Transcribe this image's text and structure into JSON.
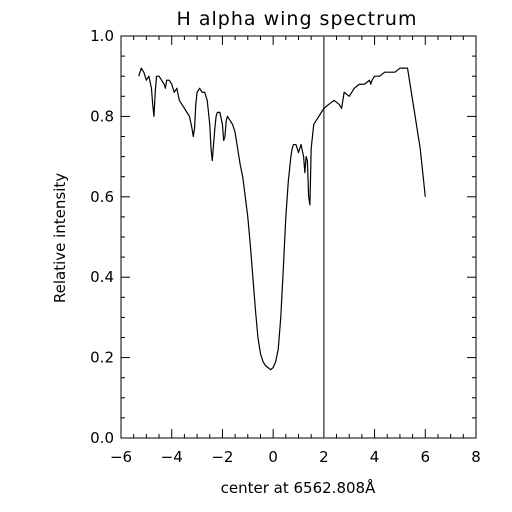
{
  "chart_data": {
    "type": "line",
    "title": "H alpha wing spectrum",
    "xlabel": "center at 6562.808Å",
    "ylabel": "Relative intensity",
    "xlim": [
      -6,
      8
    ],
    "ylim": [
      0.0,
      1.0
    ],
    "xticks": [
      "−6",
      "−4",
      "−2",
      "0",
      "2",
      "4",
      "6",
      "8"
    ],
    "yticks": [
      "0.0",
      "0.2",
      "0.4",
      "0.6",
      "0.8",
      "1.0"
    ],
    "grid": false,
    "reference_line_x": 2.0,
    "series": [
      {
        "x": [
          -5.3,
          -5.2,
          -5.1,
          -5.0,
          -4.9,
          -4.8,
          -4.75,
          -4.7,
          -4.65,
          -4.6,
          -4.5,
          -4.4,
          -4.3,
          -4.25,
          -4.2,
          -4.1,
          -4.0,
          -3.9,
          -3.8,
          -3.7,
          -3.6,
          -3.5,
          -3.4,
          -3.3,
          -3.2,
          -3.15,
          -3.1,
          -3.05,
          -3.0,
          -2.9,
          -2.8,
          -2.7,
          -2.6,
          -2.5,
          -2.45,
          -2.4,
          -2.35,
          -2.3,
          -2.25,
          -2.2,
          -2.1,
          -2.0,
          -1.95,
          -1.9,
          -1.85,
          -1.8,
          -1.7,
          -1.6,
          -1.5,
          -1.4,
          -1.3,
          -1.2,
          -1.1,
          -1.0,
          -0.9,
          -0.8,
          -0.7,
          -0.6,
          -0.5,
          -0.4,
          -0.3,
          -0.2,
          -0.1,
          0.0,
          0.1,
          0.2,
          0.3,
          0.4,
          0.5,
          0.6,
          0.7,
          0.75,
          0.8,
          0.9,
          1.0,
          1.1,
          1.2,
          1.25,
          1.3,
          1.35,
          1.4,
          1.45,
          1.5,
          1.6,
          1.7,
          1.8,
          1.9,
          2.0,
          2.2,
          2.4,
          2.6,
          2.7,
          2.8,
          3.0,
          3.2,
          3.4,
          3.6,
          3.8,
          3.85,
          3.9,
          4.0,
          4.2,
          4.4,
          4.6,
          4.8,
          5.0,
          5.2,
          5.3,
          5.4,
          5.6,
          5.8,
          6.0
        ],
        "y": [
          0.9,
          0.92,
          0.91,
          0.89,
          0.9,
          0.87,
          0.83,
          0.8,
          0.86,
          0.9,
          0.9,
          0.89,
          0.88,
          0.87,
          0.89,
          0.89,
          0.88,
          0.86,
          0.87,
          0.84,
          0.83,
          0.82,
          0.81,
          0.8,
          0.77,
          0.75,
          0.77,
          0.83,
          0.86,
          0.87,
          0.86,
          0.86,
          0.84,
          0.78,
          0.72,
          0.69,
          0.73,
          0.77,
          0.8,
          0.81,
          0.81,
          0.78,
          0.74,
          0.75,
          0.79,
          0.8,
          0.79,
          0.78,
          0.76,
          0.72,
          0.68,
          0.65,
          0.6,
          0.55,
          0.48,
          0.4,
          0.32,
          0.25,
          0.21,
          0.19,
          0.18,
          0.175,
          0.17,
          0.175,
          0.19,
          0.22,
          0.3,
          0.42,
          0.55,
          0.64,
          0.7,
          0.72,
          0.73,
          0.73,
          0.71,
          0.73,
          0.7,
          0.66,
          0.7,
          0.69,
          0.6,
          0.58,
          0.72,
          0.78,
          0.79,
          0.8,
          0.81,
          0.82,
          0.83,
          0.84,
          0.83,
          0.82,
          0.86,
          0.85,
          0.87,
          0.88,
          0.88,
          0.89,
          0.88,
          0.89,
          0.9,
          0.9,
          0.91,
          0.91,
          0.91,
          0.92,
          0.92,
          0.92,
          0.88,
          0.8,
          0.72,
          0.6
        ]
      }
    ]
  }
}
